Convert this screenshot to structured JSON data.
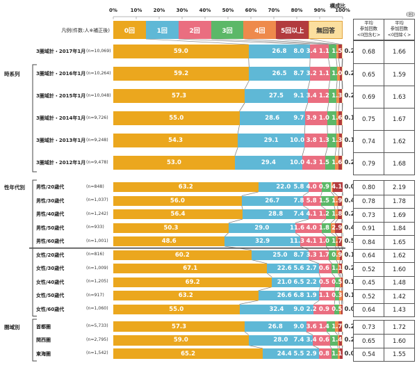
{
  "header": {
    "axis_title": "構成比",
    "unit": "(回)",
    "legend_caption": "凡例(件数:人※補正後)",
    "ticks": [
      "0%",
      "10%",
      "20%",
      "30%",
      "40%",
      "50%",
      "60%",
      "70%",
      "80%",
      "90%",
      "100%"
    ],
    "avg_col1": "平均\n参加回数\n<0回含む>",
    "avg_col2": "平均\n参加回数\n<0回除く>"
  },
  "legend": [
    {
      "label": "0回",
      "color": "#EBA71E",
      "text_color": "#ffffff"
    },
    {
      "label": "1回",
      "color": "#5FB8D6",
      "text_color": "#ffffff"
    },
    {
      "label": "2回",
      "color": "#EA6E80",
      "text_color": "#ffffff"
    },
    {
      "label": "3回",
      "color": "#5CB868",
      "text_color": "#ffffff"
    },
    {
      "label": "4回",
      "color": "#EE8A4C",
      "text_color": "#ffffff"
    },
    {
      "label": "5回以上",
      "color": "#B23B3E",
      "text_color": "#ffffff"
    },
    {
      "label": "無回答",
      "color": "#FBDF9F",
      "text_color": "#333333",
      "border": "#E2A33C"
    }
  ],
  "chart_data": {
    "type": "bar",
    "subtype": "stacked-horizontal-percent",
    "xlabel": "構成比",
    "xlim": [
      0,
      100
    ],
    "series_labels": [
      "0回",
      "1回",
      "2回",
      "3回",
      "4回",
      "5回以上",
      "無回答"
    ],
    "value_unit": "%",
    "avg_unit": "回",
    "sections": [
      {
        "group": "時系列",
        "rows": [
          {
            "label": "3圏域計・2017年1月",
            "n": "(n=10,069)",
            "values": [
              59.0,
              26.8,
              8.0,
              3.4,
              1.1,
              1.5,
              0.2
            ],
            "avg_incl": "0.68",
            "avg_excl": "1.66"
          },
          {
            "label": "3圏域計・2016年1月",
            "n": "(n=10,264)",
            "values": [
              59.2,
              26.5,
              8.7,
              3.2,
              1.1,
              1.0,
              0.2
            ],
            "avg_incl": "0.65",
            "avg_excl": "1.59"
          },
          {
            "label": "3圏域計・2015年1月",
            "n": "(n=10,048)",
            "values": [
              57.3,
              27.5,
              9.1,
              3.4,
              1.2,
              1.3,
              0.2
            ],
            "avg_incl": "0.69",
            "avg_excl": "1.63"
          },
          {
            "label": "3圏域計・2014年1月",
            "n": "(n=9,726)",
            "values": [
              55.0,
              28.6,
              9.7,
              3.9,
              1.0,
              1.6,
              0.1
            ],
            "avg_incl": "0.75",
            "avg_excl": "1.67"
          },
          {
            "label": "3圏域計・2013年1月",
            "n": "(n=9,248)",
            "values": [
              54.3,
              29.1,
              10.0,
              3.8,
              1.3,
              1.3,
              0.1
            ],
            "avg_incl": "0.74",
            "avg_excl": "1.62"
          },
          {
            "label": "3圏域計・2012年1月",
            "n": "(n=9,478)",
            "values": [
              53.0,
              29.4,
              10.0,
              4.3,
              1.5,
              1.6,
              0.2
            ],
            "avg_incl": "0.79",
            "avg_excl": "1.68"
          }
        ]
      },
      {
        "group": "性年代別",
        "rows": [
          {
            "label": "男性/20歳代",
            "n": "(n=848)",
            "values": [
              63.2,
              22.0,
              5.8,
              4.0,
              0.9,
              4.1,
              0.0
            ],
            "avg_incl": "0.80",
            "avg_excl": "2.19"
          },
          {
            "label": "男性/30歳代",
            "n": "(n=1,037)",
            "values": [
              56.0,
              26.7,
              7.8,
              5.8,
              1.5,
              1.9,
              0.4
            ],
            "avg_incl": "0.78",
            "avg_excl": "1.78"
          },
          {
            "label": "男性/40歳代",
            "n": "(n=1,242)",
            "values": [
              56.4,
              28.8,
              7.4,
              4.1,
              1.2,
              1.8,
              0.2
            ],
            "avg_incl": "0.73",
            "avg_excl": "1.69"
          },
          {
            "label": "男性/50歳代",
            "n": "(n=933)",
            "values": [
              50.3,
              29.0,
              11.6,
              4.0,
              1.8,
              2.9,
              0.4
            ],
            "avg_incl": "0.91",
            "avg_excl": "1.84"
          },
          {
            "label": "男性/60歳代",
            "n": "(n=1,001)",
            "values": [
              48.6,
              32.9,
              11.3,
              4.1,
              1.0,
              1.7,
              0.5
            ],
            "avg_incl": "0.84",
            "avg_excl": "1.65"
          },
          {
            "label": "女性/20歳代",
            "n": "(n=816)",
            "values": [
              60.2,
              25.0,
              8.7,
              3.3,
              1.7,
              0.9,
              0.1
            ],
            "avg_incl": "0.64",
            "avg_excl": "1.62"
          },
          {
            "label": "女性/30歳代",
            "n": "(n=1,009)",
            "values": [
              67.1,
              22.6,
              5.6,
              2.7,
              0.6,
              1.1,
              0.2
            ],
            "avg_incl": "0.52",
            "avg_excl": "1.60"
          },
          {
            "label": "女性/40歳代",
            "n": "(n=1,205)",
            "values": [
              69.2,
              21.0,
              6.5,
              2.2,
              0.5,
              0.5,
              0.1
            ],
            "avg_incl": "0.45",
            "avg_excl": "1.48"
          },
          {
            "label": "女性/50歳代",
            "n": "(n=917)",
            "values": [
              63.2,
              26.6,
              6.8,
              1.9,
              1.1,
              0.3,
              0.1
            ],
            "avg_incl": "0.52",
            "avg_excl": "1.42"
          },
          {
            "label": "女性/60歳代",
            "n": "(n=1,060)",
            "values": [
              55.0,
              32.4,
              9.0,
              2.2,
              0.9,
              0.5,
              0.0
            ],
            "avg_incl": "0.64",
            "avg_excl": "1.43"
          }
        ]
      },
      {
        "group": "圏域別",
        "rows": [
          {
            "label": "首都圏",
            "n": "(n=5,733)",
            "values": [
              57.3,
              26.8,
              9.0,
              3.6,
              1.4,
              1.7,
              0.2
            ],
            "avg_incl": "0.73",
            "avg_excl": "1.72"
          },
          {
            "label": "関西圏",
            "n": "(n=2,795)",
            "values": [
              59.0,
              28.0,
              7.4,
              3.4,
              0.6,
              1.4,
              0.2
            ],
            "avg_incl": "0.65",
            "avg_excl": "1.60"
          },
          {
            "label": "東海圏",
            "n": "(n=1,542)",
            "values": [
              65.2,
              24.4,
              5.5,
              2.9,
              0.8,
              1.1,
              0.0
            ],
            "avg_incl": "0.54",
            "avg_excl": "1.55"
          }
        ]
      }
    ]
  }
}
